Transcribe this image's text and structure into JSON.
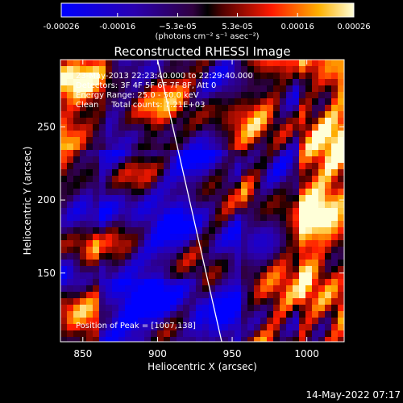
{
  "colorbar": {
    "ticks": [
      -0.00026,
      -0.00016,
      -5.3e-05,
      5.3e-05,
      0.00016,
      0.00026
    ],
    "tick_labels": [
      "-0.00026",
      "-0.00016",
      "−5.3e-05",
      "5.3e-05",
      "0.00016",
      "0.00026"
    ],
    "units": "(photons cm⁻² s⁻¹ asec⁻²)",
    "range": [
      -0.00026,
      0.00026
    ]
  },
  "chart_data": {
    "type": "heatmap",
    "title": "Reconstructed RHESSI Image",
    "xlabel": "Heliocentric X (arcsec)",
    "ylabel": "Heliocentric Y (arcsec)",
    "xlim": [
      835,
      1025
    ],
    "ylim": [
      103,
      296
    ],
    "xticks": [
      850,
      900,
      950,
      1000
    ],
    "yticks": [
      150,
      200,
      250
    ],
    "peak": [
      1007,
      138
    ],
    "limb_line": [
      [
        900,
        296
      ],
      [
        943,
        103
      ]
    ],
    "annotations": {
      "time": "23-May-2013 22:23:40.000 to 22:29:40.000",
      "detectors": "Detectors: 3F 4F 5F 6F 7F 8F, Att 0",
      "energy": "Energy Range: 25.0 - 50.0 keV",
      "clean": "Clean     Total counts: 7.21E+03",
      "peak_text": "Position of Peak = [1007,138]"
    }
  },
  "timestamp": "14-May-2022 07:17"
}
